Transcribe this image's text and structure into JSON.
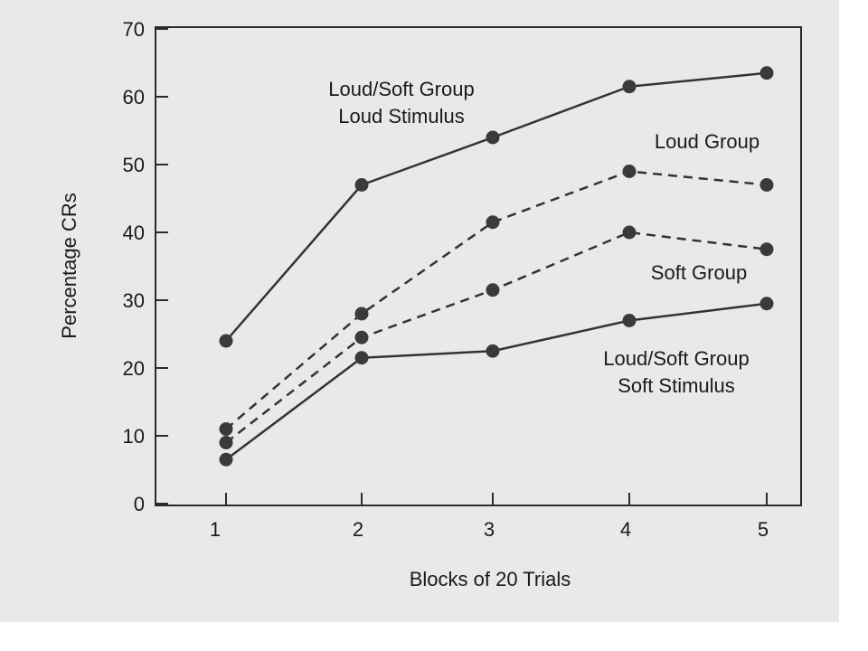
{
  "chart_data": {
    "type": "line",
    "xlabel": "Blocks of 20 Trials",
    "ylabel": "Percentage CRs",
    "categories": [
      "1",
      "2",
      "3",
      "4",
      "5"
    ],
    "x": [
      1,
      2,
      3,
      4,
      5
    ],
    "yticks": [
      "0",
      "10",
      "20",
      "30",
      "40",
      "50",
      "60",
      "70"
    ],
    "ylim": [
      0,
      70
    ],
    "grid": false,
    "series": [
      {
        "name": "Loud/Soft Group Loud Stimulus",
        "label_lines": [
          "Loud/Soft Group",
          "Loud Stimulus"
        ],
        "style": "solid",
        "values": [
          24,
          47,
          54,
          61.5,
          63.5
        ]
      },
      {
        "name": "Loud Group",
        "label_lines": [
          "Loud Group"
        ],
        "style": "dashed",
        "values": [
          11,
          28,
          41.5,
          49,
          47
        ]
      },
      {
        "name": "Soft Group",
        "label_lines": [
          "Soft Group"
        ],
        "style": "dashed",
        "values": [
          9,
          24.5,
          31.5,
          40,
          37.5
        ]
      },
      {
        "name": "Loud/Soft Group Soft Stimulus",
        "label_lines": [
          "Loud/Soft Group",
          "Soft Stimulus"
        ],
        "style": "solid",
        "values": [
          6.5,
          21.5,
          22.5,
          27,
          29.5
        ]
      }
    ],
    "colors": {
      "line": "#333333",
      "marker": "#3a3a3a",
      "background": "#e9e9e9"
    }
  }
}
